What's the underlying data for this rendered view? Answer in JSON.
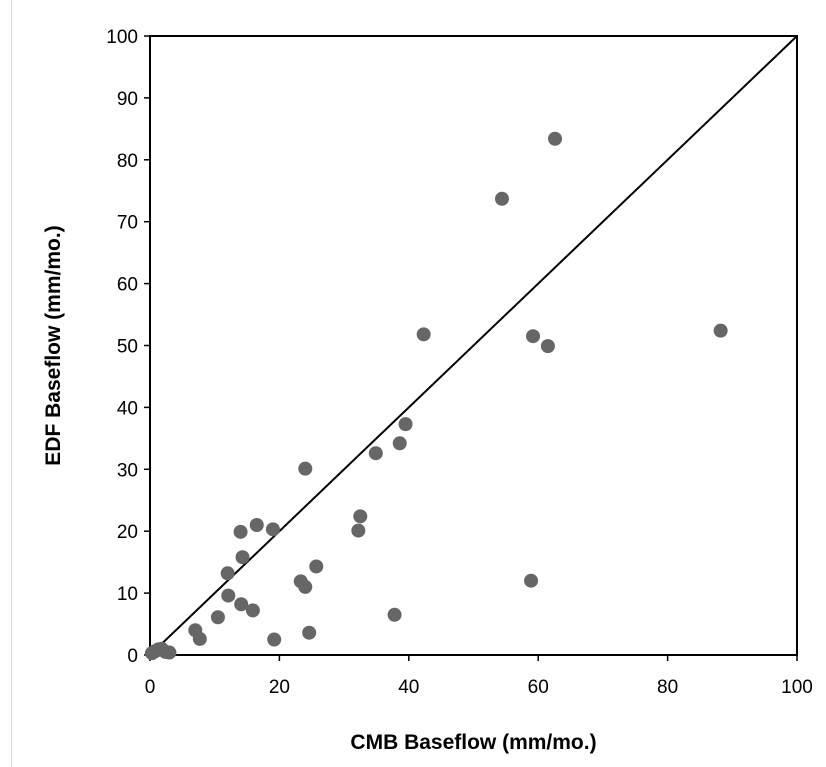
{
  "chart_data": {
    "type": "scatter",
    "title": "",
    "xlabel": "CMB Baseflow (mm/mo.)",
    "ylabel": "EDF Baseflow (mm/mo.)",
    "xlim": [
      0,
      100
    ],
    "ylim": [
      0,
      100
    ],
    "x_ticks": [
      0,
      20,
      40,
      60,
      80,
      100
    ],
    "y_ticks": [
      0,
      10,
      20,
      30,
      40,
      50,
      60,
      70,
      80,
      90,
      100
    ],
    "x_tick_labels": [
      "0",
      "20",
      "40",
      "60",
      "80",
      "100"
    ],
    "y_tick_labels": [
      "0",
      "10",
      "20",
      "30",
      "40",
      "50",
      "60",
      "70",
      "80",
      "90",
      "100"
    ],
    "grid": false,
    "legend": "none",
    "marker_color": "#666666",
    "reference_line": {
      "kind": "1:1",
      "from": [
        0,
        0
      ],
      "to": [
        100,
        100
      ],
      "color": "#000000"
    },
    "points": [
      {
        "x": 0.3,
        "y": 0.3
      },
      {
        "x": 0.8,
        "y": 0.6
      },
      {
        "x": 1.3,
        "y": 0.9
      },
      {
        "x": 1.8,
        "y": 1.0
      },
      {
        "x": 2.4,
        "y": 0.5
      },
      {
        "x": 3.0,
        "y": 0.4
      },
      {
        "x": 7.0,
        "y": 4.0
      },
      {
        "x": 7.7,
        "y": 2.6
      },
      {
        "x": 10.5,
        "y": 6.1
      },
      {
        "x": 12.0,
        "y": 13.2
      },
      {
        "x": 12.1,
        "y": 9.6
      },
      {
        "x": 14.0,
        "y": 19.9
      },
      {
        "x": 14.1,
        "y": 8.2
      },
      {
        "x": 14.3,
        "y": 15.8
      },
      {
        "x": 15.9,
        "y": 7.2
      },
      {
        "x": 16.5,
        "y": 21.0
      },
      {
        "x": 19.0,
        "y": 20.3
      },
      {
        "x": 19.2,
        "y": 2.5
      },
      {
        "x": 23.3,
        "y": 11.9
      },
      {
        "x": 24.0,
        "y": 11.0
      },
      {
        "x": 24.0,
        "y": 30.1
      },
      {
        "x": 24.6,
        "y": 3.6
      },
      {
        "x": 25.7,
        "y": 14.3
      },
      {
        "x": 32.2,
        "y": 20.1
      },
      {
        "x": 32.5,
        "y": 22.4
      },
      {
        "x": 34.9,
        "y": 32.6
      },
      {
        "x": 37.8,
        "y": 6.5
      },
      {
        "x": 38.6,
        "y": 34.2
      },
      {
        "x": 39.5,
        "y": 37.3
      },
      {
        "x": 42.3,
        "y": 51.8
      },
      {
        "x": 54.4,
        "y": 73.7
      },
      {
        "x": 58.9,
        "y": 12.0
      },
      {
        "x": 59.2,
        "y": 51.5
      },
      {
        "x": 61.5,
        "y": 49.9
      },
      {
        "x": 62.6,
        "y": 83.4
      },
      {
        "x": 88.2,
        "y": 52.4
      }
    ]
  }
}
